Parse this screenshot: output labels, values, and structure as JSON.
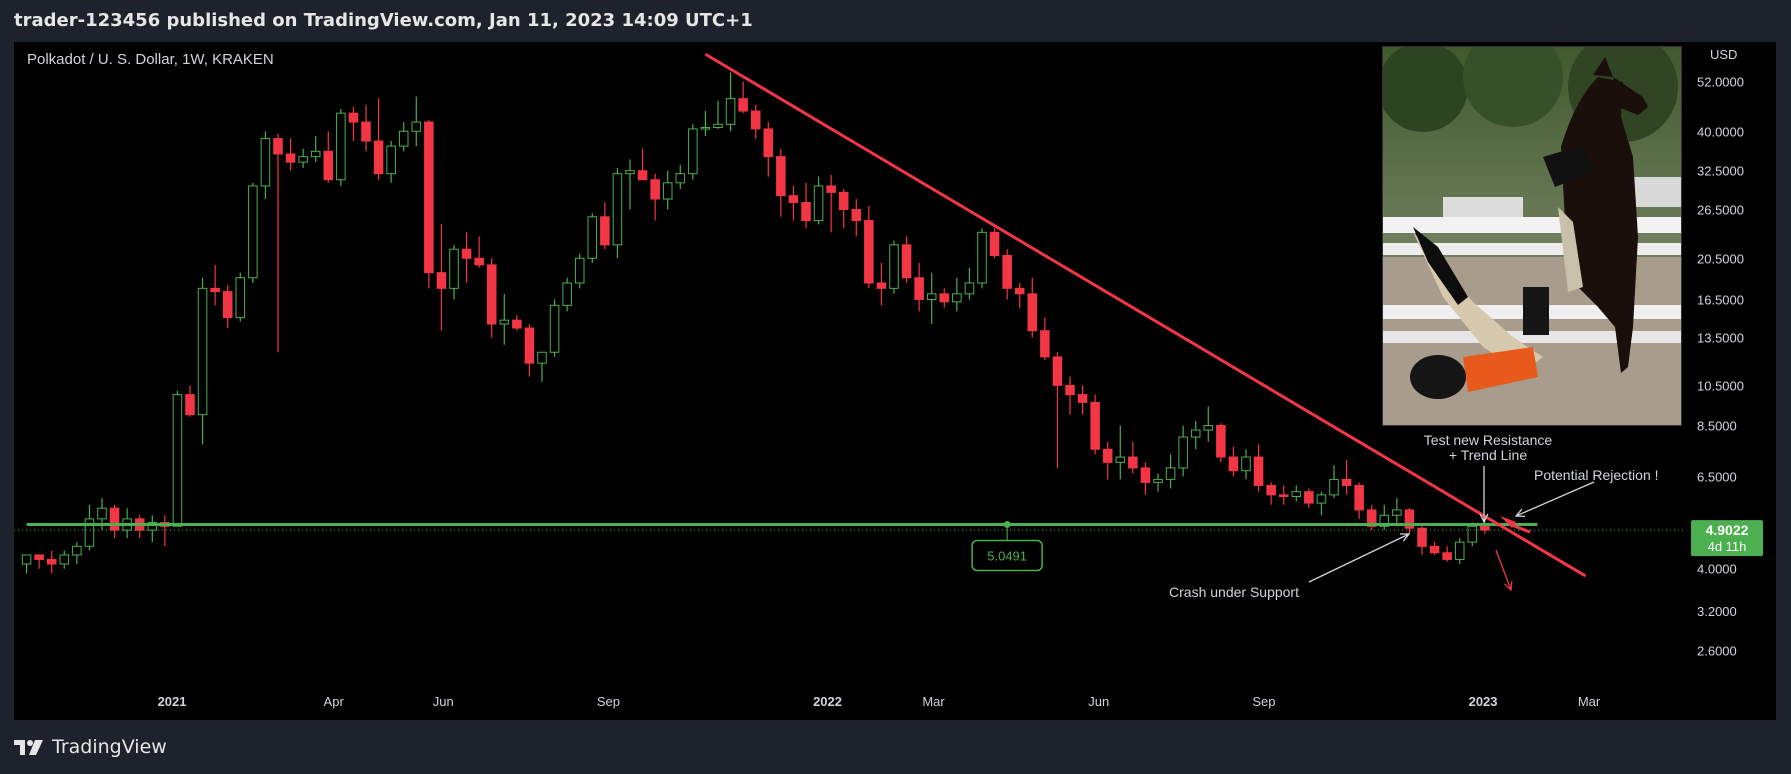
{
  "header": {
    "title": "trader-123456 published on TradingView.com, Jan 11, 2023 14:09 UTC+1"
  },
  "footer": {
    "brand": "TradingView"
  },
  "chart_data": {
    "type": "candlestick",
    "title": "Polkadot / U. S. Dollar, 1W, KRAKEN",
    "currency_label": "USD",
    "scale": "log",
    "ylim": [
      2.25,
      64
    ],
    "yticks": [
      {
        "value": 52,
        "label": "52.0000"
      },
      {
        "value": 40,
        "label": "40.0000"
      },
      {
        "value": 32.5,
        "label": "32.5000"
      },
      {
        "value": 26.5,
        "label": "26.5000"
      },
      {
        "value": 20.5,
        "label": "20.5000"
      },
      {
        "value": 16.5,
        "label": "16.5000"
      },
      {
        "value": 13.5,
        "label": "13.5000"
      },
      {
        "value": 10.5,
        "label": "10.5000"
      },
      {
        "value": 8.5,
        "label": "8.5000"
      },
      {
        "value": 6.5,
        "label": "6.5000"
      },
      {
        "value": 4.0,
        "label": "4.0000"
      },
      {
        "value": 3.2,
        "label": "3.2000"
      },
      {
        "value": 2.6,
        "label": "2.6000"
      }
    ],
    "xticks": [
      {
        "date": "2021-01-01",
        "label": "2021",
        "bold": true
      },
      {
        "date": "2021-04-01",
        "label": "Apr",
        "bold": false
      },
      {
        "date": "2021-06-01",
        "label": "Jun",
        "bold": false
      },
      {
        "date": "2021-09-01",
        "label": "Sep",
        "bold": false
      },
      {
        "date": "2022-01-01",
        "label": "2022",
        "bold": true
      },
      {
        "date": "2022-03-01",
        "label": "Mar",
        "bold": false
      },
      {
        "date": "2022-06-01",
        "label": "Jun",
        "bold": false
      },
      {
        "date": "2022-09-01",
        "label": "Sep",
        "bold": false
      },
      {
        "date": "2023-01-01",
        "label": "2023",
        "bold": true
      },
      {
        "date": "2023-03-01",
        "label": "Mar",
        "bold": false
      }
    ],
    "xlim": [
      "2020-10-05",
      "2023-04-24"
    ],
    "first_candle_date": "2020-10-12",
    "candles": [
      [
        4.1,
        4.3,
        3.9,
        4.3
      ],
      [
        4.3,
        4.3,
        4.0,
        4.2
      ],
      [
        4.2,
        4.4,
        3.9,
        4.1
      ],
      [
        4.1,
        4.4,
        4.0,
        4.3
      ],
      [
        4.3,
        4.6,
        4.1,
        4.5
      ],
      [
        4.5,
        5.6,
        4.4,
        5.2
      ],
      [
        5.2,
        5.8,
        4.9,
        5.5
      ],
      [
        5.5,
        5.6,
        4.7,
        4.9
      ],
      [
        4.9,
        5.5,
        4.7,
        5.2
      ],
      [
        5.2,
        5.3,
        4.7,
        4.9
      ],
      [
        4.9,
        5.3,
        4.6,
        5.1
      ],
      [
        5.1,
        5.3,
        4.5,
        5.0
      ],
      [
        5.0,
        10.2,
        5.0,
        10.0
      ],
      [
        10.0,
        10.5,
        8.9,
        9.0
      ],
      [
        9.0,
        18.5,
        7.7,
        17.5
      ],
      [
        17.5,
        19.8,
        16.0,
        17.2
      ],
      [
        17.2,
        17.8,
        14.2,
        15.0
      ],
      [
        15.0,
        19.0,
        14.7,
        18.5
      ],
      [
        18.5,
        30.5,
        18.0,
        30.0
      ],
      [
        30.0,
        40.0,
        28.0,
        38.5
      ],
      [
        38.5,
        39.5,
        12.5,
        35.5
      ],
      [
        35.5,
        38.5,
        32.5,
        34.0
      ],
      [
        34.0,
        36.5,
        33.0,
        35.0
      ],
      [
        35.0,
        39.0,
        34.0,
        36.0
      ],
      [
        36.0,
        40.0,
        30.5,
        31.0
      ],
      [
        31.0,
        45.0,
        30.0,
        44.0
      ],
      [
        44.0,
        45.5,
        38.0,
        42.0
      ],
      [
        42.0,
        46.0,
        36.0,
        38.0
      ],
      [
        38.0,
        47.5,
        31.0,
        32.0
      ],
      [
        32.0,
        38.0,
        30.5,
        37.0
      ],
      [
        37.0,
        42.0,
        36.0,
        40.0
      ],
      [
        40.0,
        48.0,
        37.0,
        42.0
      ],
      [
        42.0,
        42.5,
        17.5,
        19.0
      ],
      [
        19.0,
        24.5,
        14.0,
        17.5
      ],
      [
        17.5,
        22.0,
        16.5,
        21.5
      ],
      [
        21.5,
        23.5,
        18.0,
        20.5
      ],
      [
        20.5,
        23.0,
        19.5,
        19.8
      ],
      [
        19.8,
        20.5,
        13.5,
        14.5
      ],
      [
        14.5,
        17.0,
        13.0,
        14.8
      ],
      [
        14.8,
        15.2,
        14.0,
        14.2
      ],
      [
        14.2,
        14.5,
        11.0,
        11.8
      ],
      [
        11.8,
        12.5,
        10.7,
        12.5
      ],
      [
        12.5,
        16.5,
        12.2,
        16.0
      ],
      [
        16.0,
        18.5,
        15.5,
        18.0
      ],
      [
        18.0,
        21.0,
        17.5,
        20.5
      ],
      [
        20.5,
        26.0,
        20.0,
        25.5
      ],
      [
        25.5,
        27.5,
        21.5,
        22.0
      ],
      [
        22.0,
        33.0,
        20.5,
        32.0
      ],
      [
        32.0,
        34.5,
        26.5,
        32.5
      ],
      [
        32.5,
        36.5,
        31.5,
        31.0
      ],
      [
        31.0,
        32.0,
        25.0,
        28.0
      ],
      [
        28.0,
        32.5,
        26.5,
        30.5
      ],
      [
        30.5,
        33.5,
        29.5,
        32.0
      ],
      [
        32.0,
        41.5,
        31.0,
        40.5
      ],
      [
        40.5,
        44.5,
        39.0,
        40.8
      ],
      [
        40.8,
        47.0,
        40.5,
        41.5
      ],
      [
        41.5,
        54.5,
        40.0,
        47.5
      ],
      [
        47.5,
        52.0,
        44.0,
        44.5
      ],
      [
        44.5,
        46.0,
        38.5,
        40.5
      ],
      [
        40.5,
        42.0,
        31.5,
        35.0
      ],
      [
        35.0,
        36.5,
        25.5,
        28.5
      ],
      [
        28.5,
        30.0,
        25.0,
        27.5
      ],
      [
        27.5,
        30.5,
        24.0,
        25.0
      ],
      [
        25.0,
        31.5,
        24.5,
        30.0
      ],
      [
        30.0,
        31.8,
        23.5,
        29.0
      ],
      [
        29.0,
        29.5,
        24.0,
        26.5
      ],
      [
        26.5,
        28.0,
        23.0,
        25.0
      ],
      [
        25.0,
        27.0,
        17.5,
        18.0
      ],
      [
        18.0,
        20.0,
        16.0,
        17.5
      ],
      [
        17.5,
        22.5,
        17.0,
        22.0
      ],
      [
        22.0,
        23.0,
        18.0,
        18.5
      ],
      [
        18.5,
        20.0,
        15.5,
        16.5
      ],
      [
        16.5,
        19.0,
        14.5,
        17.0
      ],
      [
        17.0,
        17.5,
        15.8,
        16.3
      ],
      [
        16.3,
        18.5,
        15.5,
        17.0
      ],
      [
        17.0,
        19.5,
        16.5,
        18.0
      ],
      [
        18.0,
        24.0,
        17.5,
        23.5
      ],
      [
        23.5,
        24.0,
        20.5,
        20.8
      ],
      [
        20.8,
        21.5,
        16.5,
        17.5
      ],
      [
        17.5,
        18.0,
        15.8,
        17.0
      ],
      [
        17.0,
        18.5,
        13.5,
        14.0
      ],
      [
        14.0,
        15.0,
        12.0,
        12.2
      ],
      [
        12.2,
        12.5,
        6.8,
        10.5
      ],
      [
        10.5,
        11.0,
        9.0,
        10.0
      ],
      [
        10.0,
        10.5,
        9.0,
        9.6
      ],
      [
        9.6,
        10.0,
        7.3,
        7.5
      ],
      [
        7.5,
        7.8,
        6.4,
        7.0
      ],
      [
        7.0,
        8.5,
        6.4,
        7.2
      ],
      [
        7.2,
        7.8,
        6.6,
        6.8
      ],
      [
        6.8,
        7.0,
        5.9,
        6.3
      ],
      [
        6.3,
        6.6,
        6.0,
        6.4
      ],
      [
        6.4,
        7.3,
        6.1,
        6.8
      ],
      [
        6.8,
        8.5,
        6.5,
        8.0
      ],
      [
        8.0,
        8.7,
        7.5,
        8.3
      ],
      [
        8.3,
        9.4,
        7.8,
        8.5
      ],
      [
        8.5,
        8.6,
        7.0,
        7.2
      ],
      [
        7.2,
        7.6,
        6.5,
        6.7
      ],
      [
        6.7,
        7.5,
        6.4,
        7.2
      ],
      [
        7.2,
        7.7,
        6.0,
        6.2
      ],
      [
        6.2,
        6.3,
        5.6,
        5.9
      ],
      [
        5.9,
        6.2,
        5.6,
        5.85
      ],
      [
        5.85,
        6.2,
        5.7,
        6.0
      ],
      [
        6.0,
        6.1,
        5.5,
        5.65
      ],
      [
        5.65,
        6.0,
        5.3,
        5.9
      ],
      [
        5.9,
        6.9,
        5.8,
        6.4
      ],
      [
        6.4,
        7.1,
        5.9,
        6.2
      ],
      [
        6.2,
        6.3,
        5.2,
        5.45
      ],
      [
        5.45,
        5.6,
        4.9,
        5.0
      ],
      [
        5.0,
        5.6,
        4.9,
        5.3
      ],
      [
        5.3,
        5.8,
        5.0,
        5.45
      ],
      [
        5.45,
        5.5,
        4.8,
        4.95
      ],
      [
        4.95,
        5.0,
        4.3,
        4.5
      ],
      [
        4.5,
        4.6,
        4.3,
        4.35
      ],
      [
        4.35,
        4.5,
        4.15,
        4.2
      ],
      [
        4.2,
        4.7,
        4.1,
        4.6
      ],
      [
        4.6,
        5.1,
        4.5,
        5.0
      ],
      [
        5.0,
        5.3,
        4.8,
        4.9022
      ]
    ],
    "support_line": {
      "value": 5.0491,
      "label": "5.0491",
      "from": "2020-10-12",
      "to": "2023-01-09"
    },
    "trend_line": {
      "from": {
        "date": "2021-10-25",
        "value": 60.0
      },
      "to": {
        "date": "2023-02-27",
        "value": 3.85
      }
    },
    "last_price": {
      "value": 4.9022,
      "label": "4.9022",
      "countdown": "4d 11h"
    },
    "annotations": [
      {
        "id": "resistance",
        "text_line1": "Test new Resistance",
        "text_line2": "+ Trend Line"
      },
      {
        "id": "rejection",
        "text": "Potential Rejection !"
      },
      {
        "id": "crash",
        "text": "Crash under Support"
      }
    ],
    "colors": {
      "up": "#4caf50",
      "down": "#f23645",
      "support": "#4caf50",
      "trend": "#f23645",
      "background": "#000000",
      "last_price_bg": "#4caf50"
    }
  }
}
